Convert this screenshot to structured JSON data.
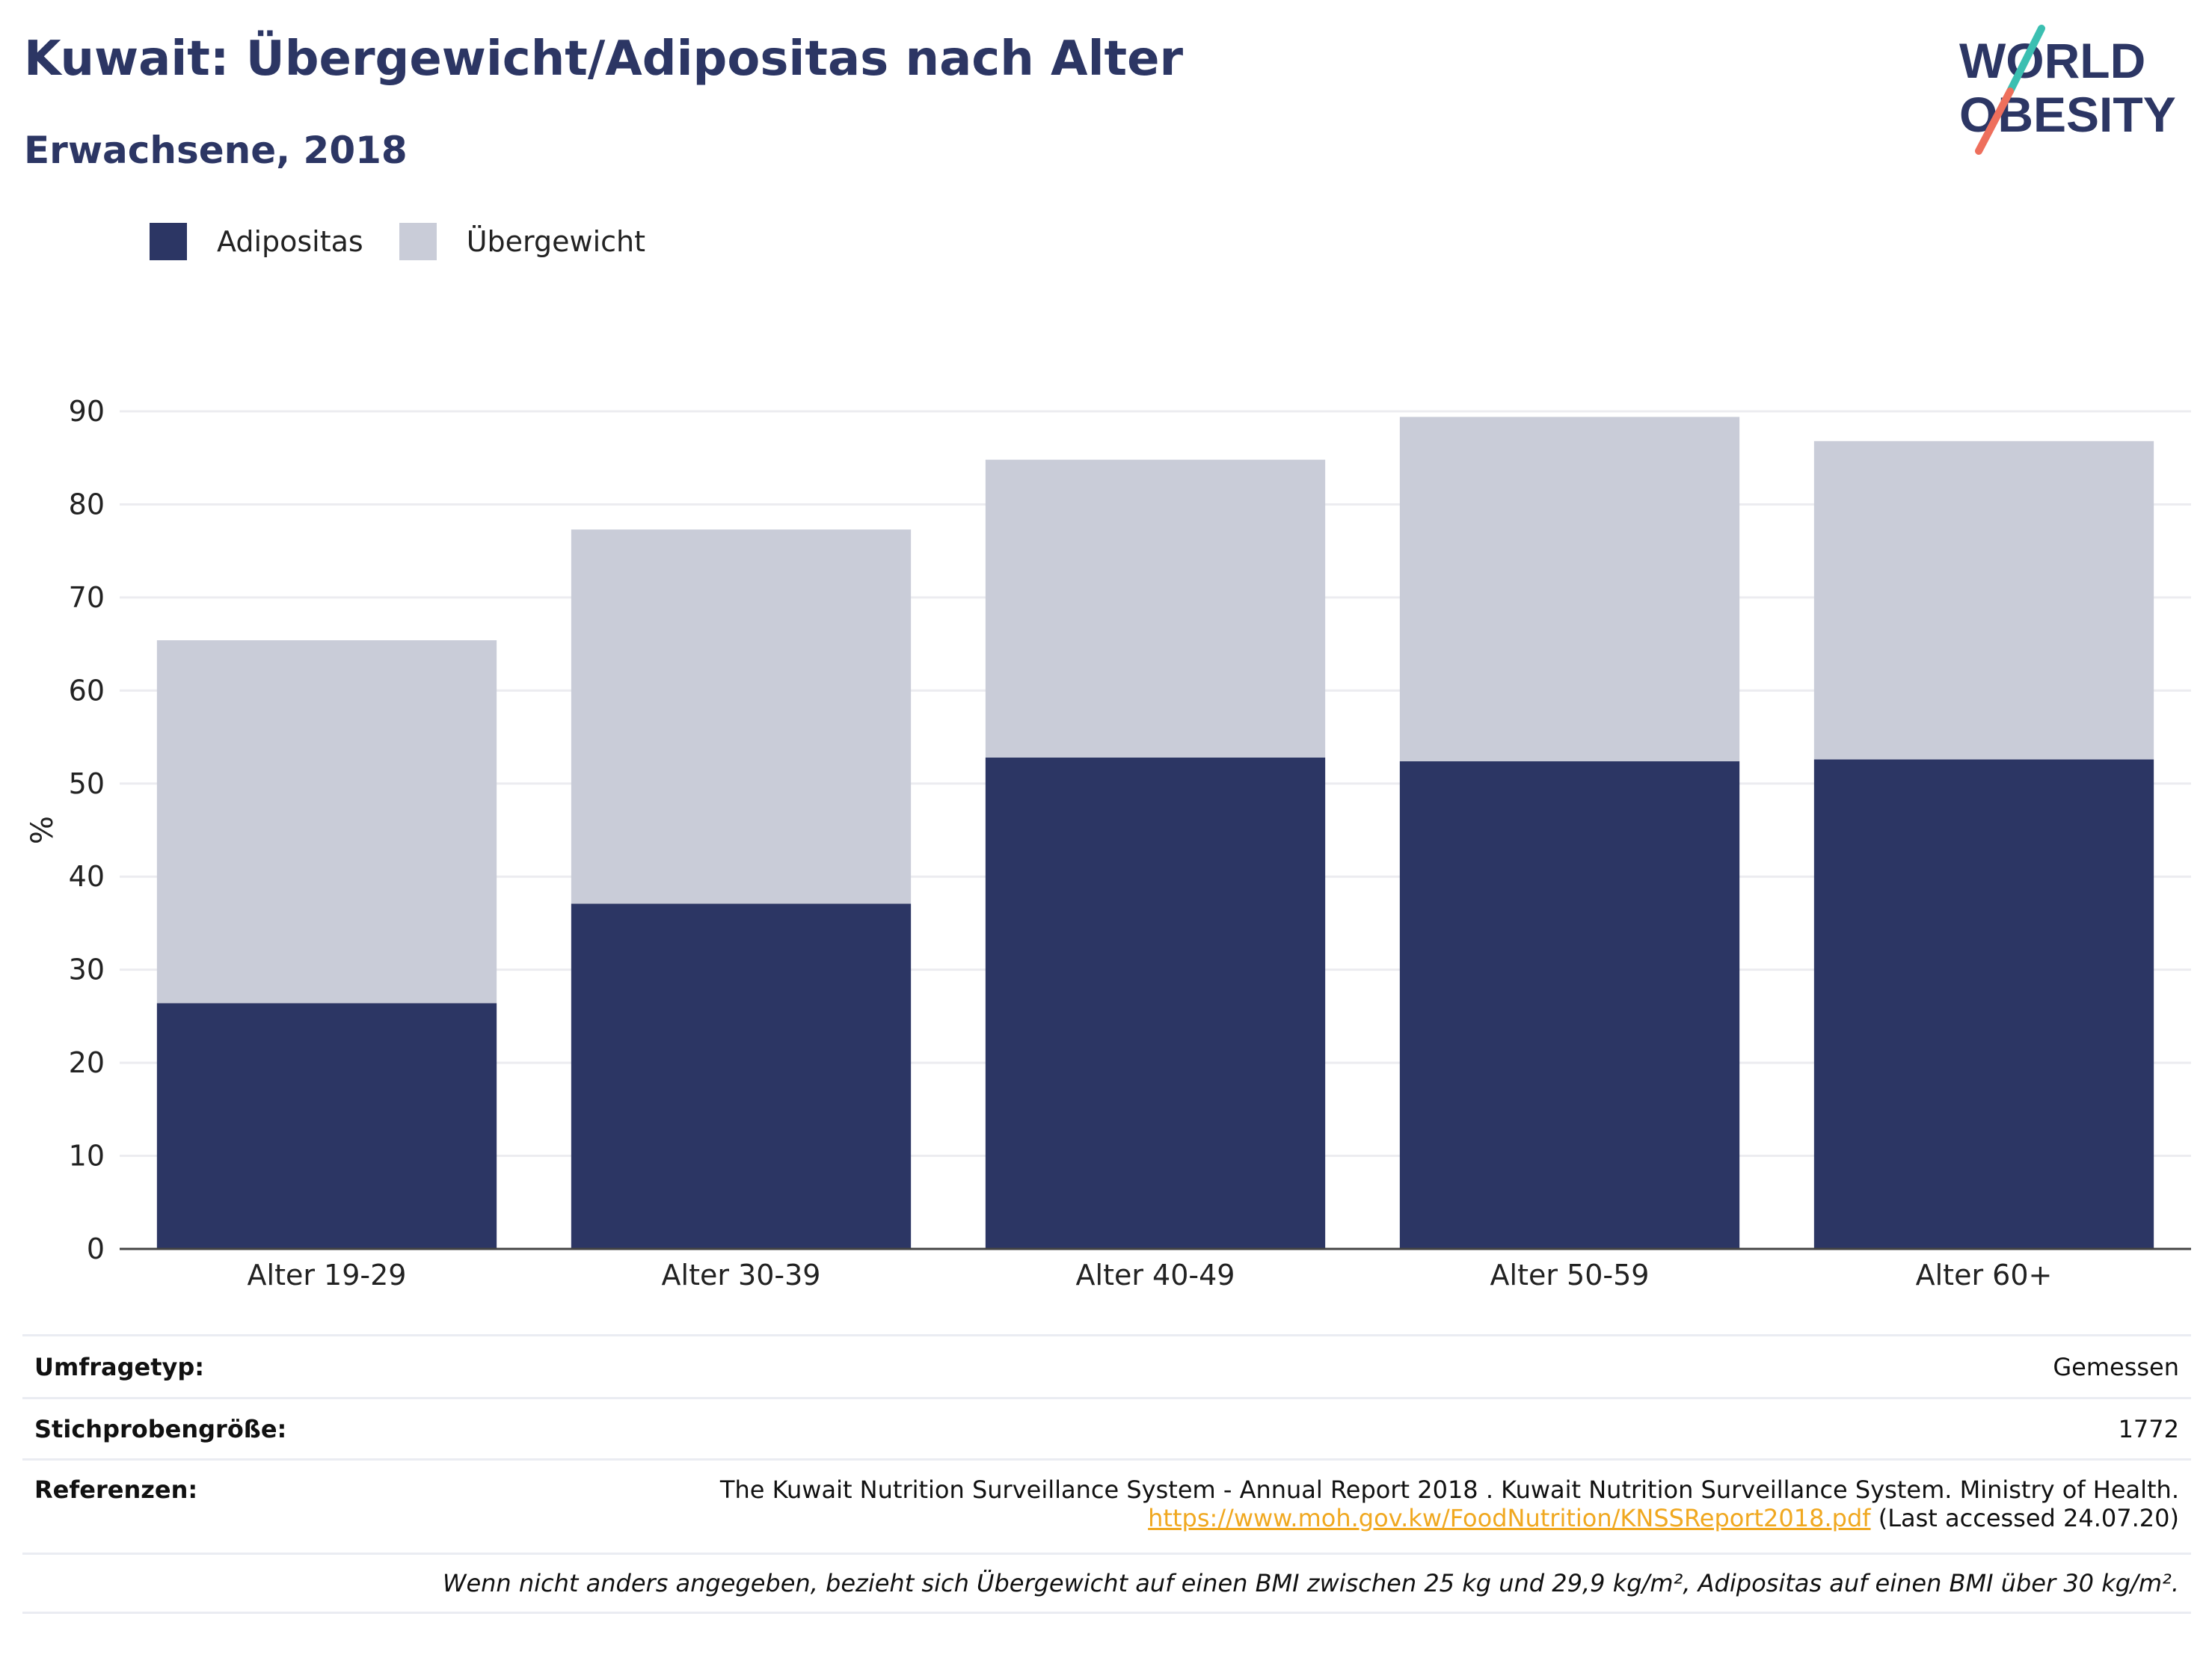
{
  "header": {
    "title": "Kuwait: Übergewicht/Adipositas nach Alter",
    "subtitle": "Erwachsene, 2018"
  },
  "logo": {
    "line1": "WORLD",
    "line2": "OBESITY",
    "colors": [
      "#2c3664",
      "#3bbfb1",
      "#ee6f5c"
    ]
  },
  "legend": [
    {
      "label": "Adipositas",
      "color": "#2c3664"
    },
    {
      "label": "Übergewicht",
      "color": "#c9ccd8"
    }
  ],
  "chart_data": {
    "type": "bar",
    "stacked": true,
    "categories": [
      "Alter 19-29",
      "Alter 30-39",
      "Alter 40-49",
      "Alter 50-59",
      "Alter 60+"
    ],
    "series": [
      {
        "name": "Adipositas",
        "values": [
          26.4,
          37.1,
          52.8,
          52.4,
          52.6
        ],
        "color": "#2c3664"
      },
      {
        "name": "Übergewicht",
        "values": [
          39.0,
          40.2,
          32.0,
          37.0,
          34.2
        ],
        "color": "#c9ccd8"
      }
    ],
    "ylabel": "%",
    "xlabel": "",
    "ylim": [
      0,
      90
    ],
    "yticks": [
      0,
      10,
      20,
      30,
      40,
      50,
      60,
      70,
      80,
      90
    ],
    "grid": true,
    "legend_position": "top-left"
  },
  "info": {
    "survey_label": "Umfragetyp:",
    "survey_value": "Gemessen",
    "sample_label": "Stichprobengröße:",
    "sample_value": "1772",
    "refs_label": "Referenzen:",
    "refs_text": "The Kuwait Nutrition Surveillance System - Annual Report 2018 . Kuwait Nutrition Surveillance System. Ministry of Health.",
    "refs_url": "https://www.moh.gov.kw/FoodNutrition/KNSSReport2018.pdf",
    "refs_accessed": " (Last accessed 24.07.20)",
    "note": "Wenn nicht anders angegeben, bezieht sich Übergewicht auf einen BMI zwischen 25 kg und 29,9 kg/m², Adipositas auf einen BMI über 30 kg/m²."
  }
}
